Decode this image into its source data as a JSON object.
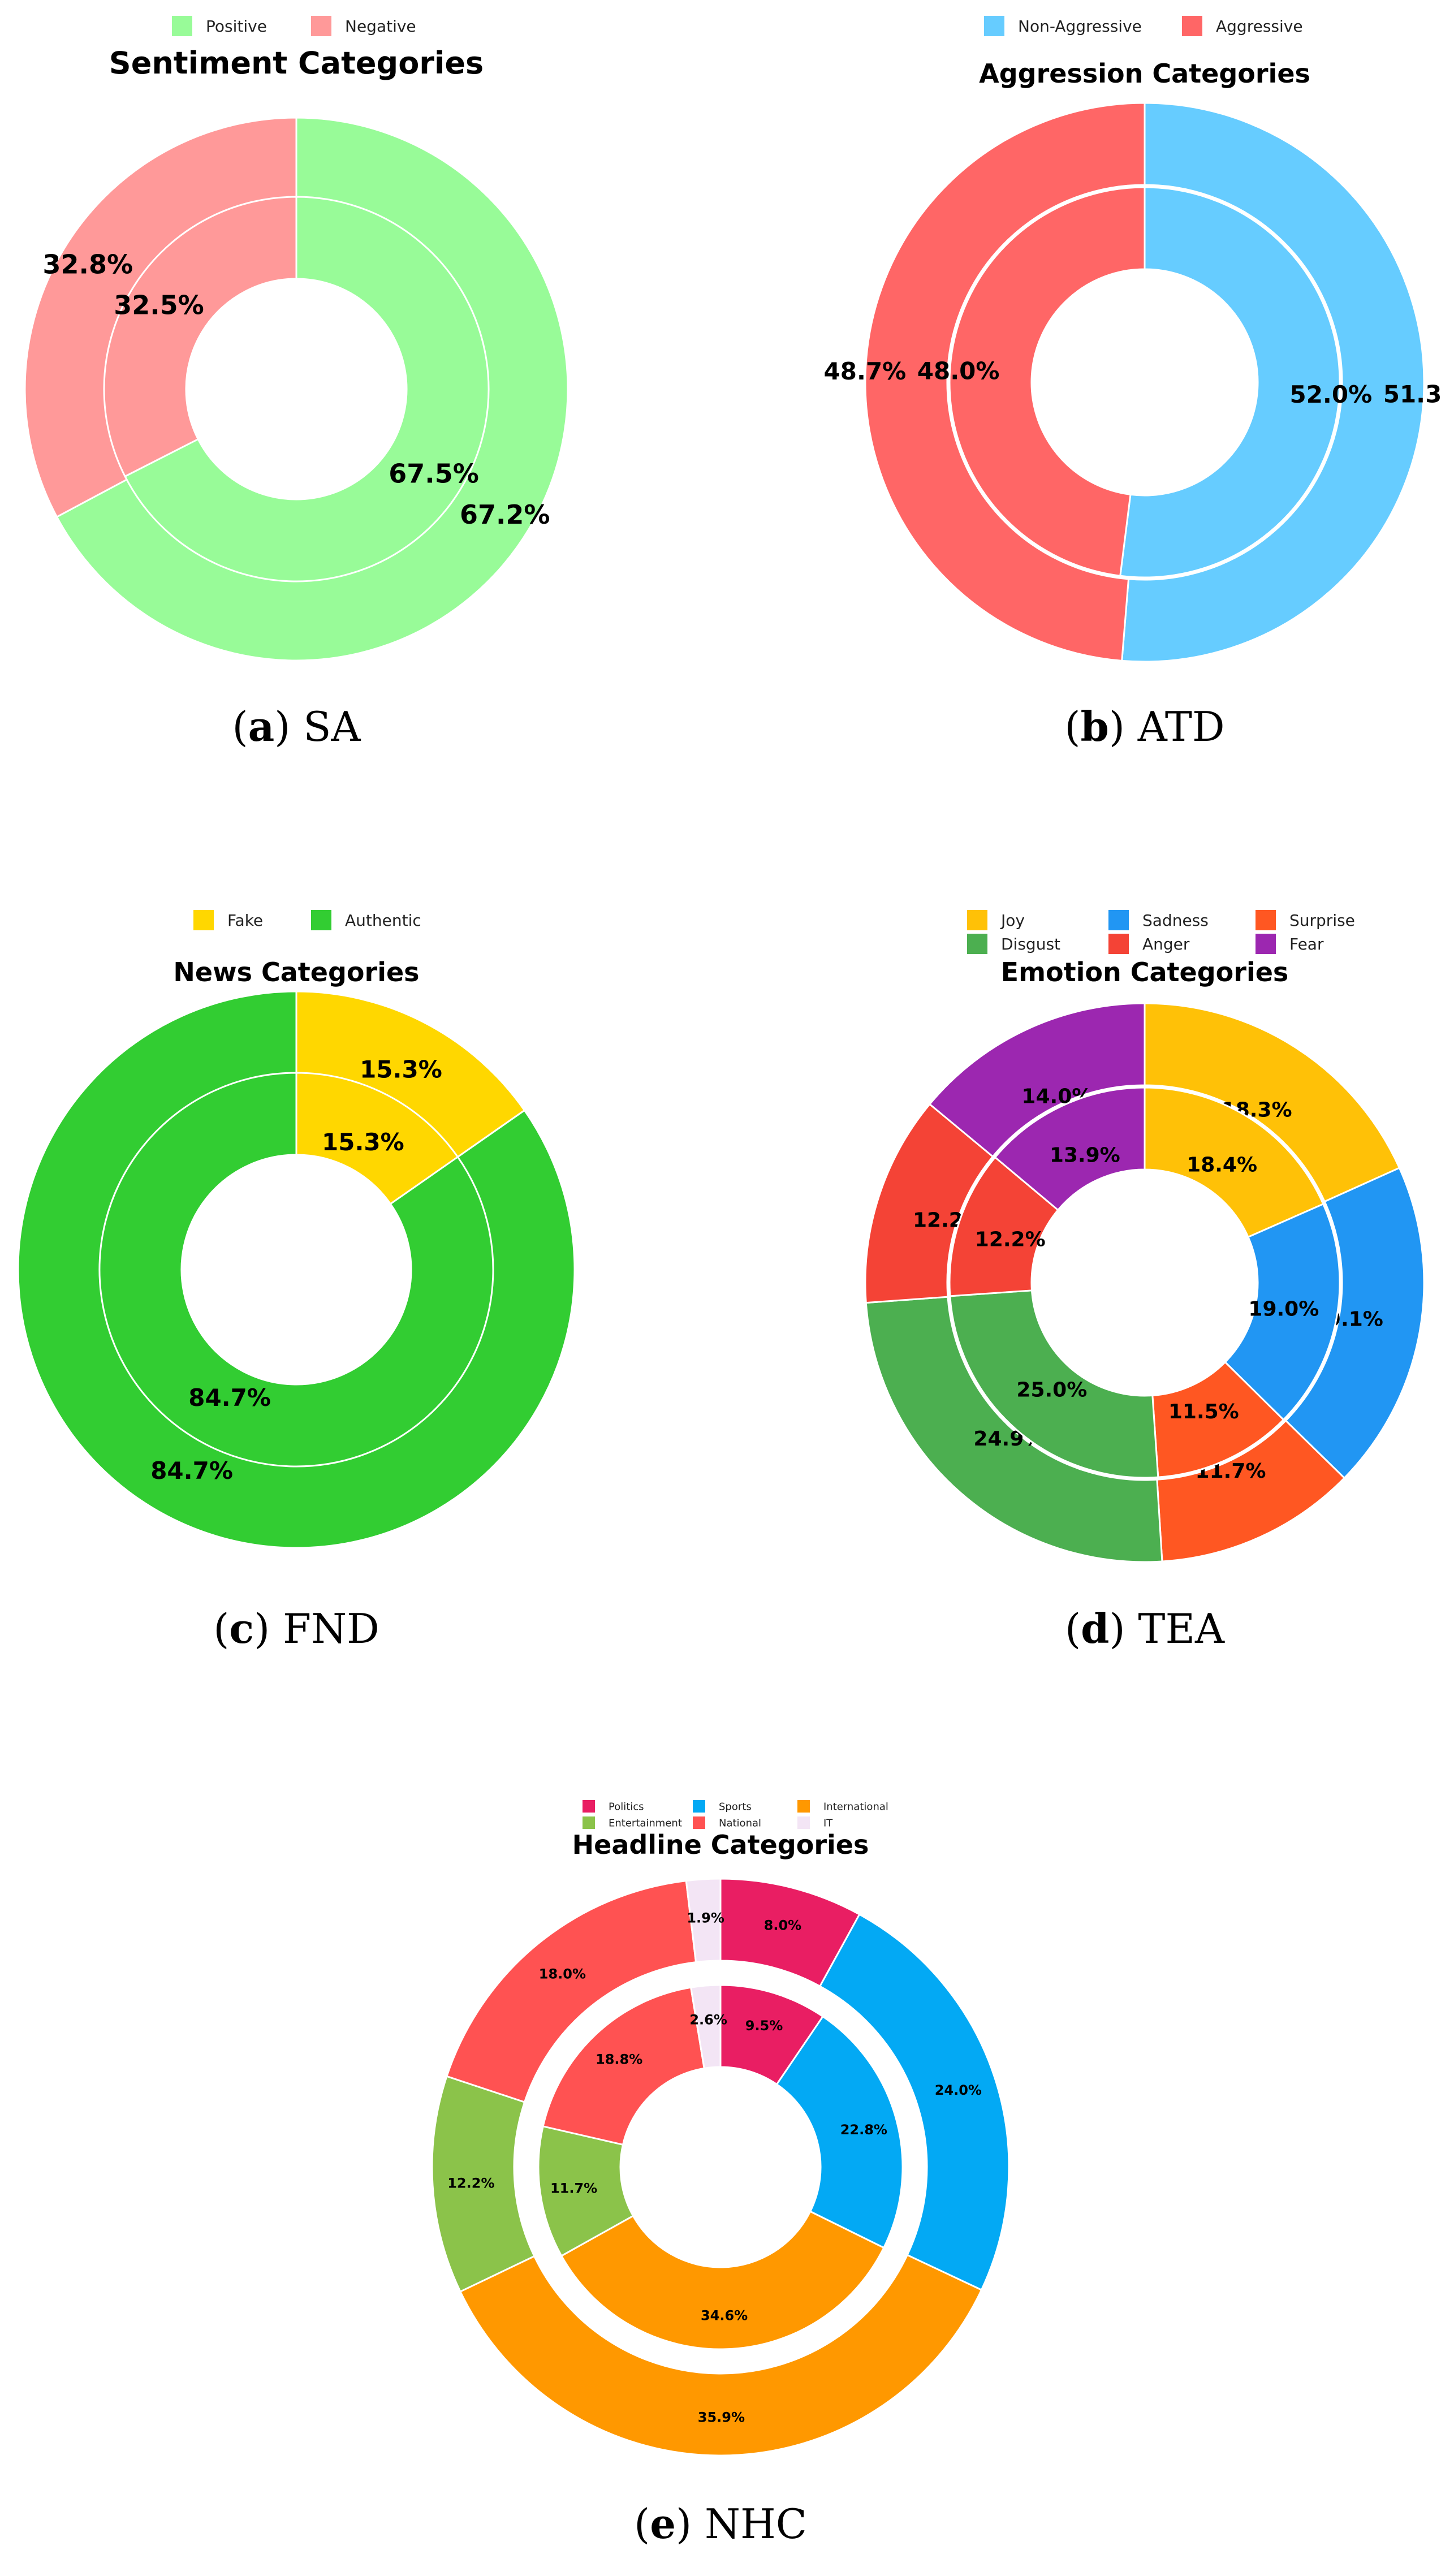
{
  "chart_data": [
    {
      "type": "pie",
      "title": "Sentiment Categories",
      "caption_letter": "a",
      "caption_name": "SA",
      "categories": [
        "Positive",
        "Negative"
      ],
      "colors": [
        "#98fb98",
        "#ff9999"
      ],
      "series": [
        {
          "ring": "outer",
          "values": [
            67.2,
            32.8
          ]
        },
        {
          "ring": "inner",
          "values": [
            67.5,
            32.5
          ]
        }
      ],
      "legend_position": "top"
    },
    {
      "type": "pie",
      "title": "Aggression Categories",
      "caption_letter": "b",
      "caption_name": "ATD",
      "categories": [
        "Non-Aggressive",
        "Aggressive"
      ],
      "colors": [
        "#66ccff",
        "#ff6666"
      ],
      "series": [
        {
          "ring": "outer",
          "values": [
            51.3,
            48.7
          ]
        },
        {
          "ring": "inner",
          "values": [
            52.0,
            48.0
          ]
        }
      ],
      "legend_position": "top"
    },
    {
      "type": "pie",
      "title": "News Categories",
      "caption_letter": "c",
      "caption_name": "FND",
      "categories": [
        "Fake",
        "Authentic"
      ],
      "colors": [
        "#ffd700",
        "#32cd32"
      ],
      "series": [
        {
          "ring": "outer",
          "values": [
            15.3,
            84.7
          ]
        },
        {
          "ring": "inner",
          "values": [
            15.3,
            84.7
          ]
        }
      ],
      "legend_position": "top"
    },
    {
      "type": "pie",
      "title": "Emotion Categories",
      "caption_letter": "d",
      "caption_name": "TEA",
      "categories": [
        "Joy",
        "Sadness",
        "Surprise",
        "Disgust",
        "Anger",
        "Fear"
      ],
      "colors": [
        "#ffc107",
        "#2196f3",
        "#ff5722",
        "#4caf50",
        "#f44336",
        "#9c27b0"
      ],
      "series": [
        {
          "ring": "outer",
          "values": [
            18.3,
            19.1,
            11.7,
            24.9,
            12.2,
            14.0
          ]
        },
        {
          "ring": "inner",
          "values": [
            18.4,
            19.0,
            11.5,
            25.0,
            12.2,
            13.9
          ]
        }
      ],
      "legend_position": "top"
    },
    {
      "type": "pie",
      "title": "Headline Categories",
      "caption_letter": "e",
      "caption_name": "NHC",
      "categories": [
        "Politics",
        "Sports",
        "International",
        "Entertainment",
        "National",
        "IT"
      ],
      "colors": [
        "#e91e63",
        "#03a9f4",
        "#ff9800",
        "#8bc34a",
        "#ff5252",
        "#f3e5f5"
      ],
      "series": [
        {
          "ring": "outer",
          "values": [
            8.0,
            24.0,
            35.9,
            12.2,
            18.0,
            1.9
          ]
        },
        {
          "ring": "inner",
          "values": [
            9.5,
            22.8,
            34.6,
            11.7,
            18.8,
            2.6
          ]
        }
      ],
      "legend_position": "top"
    }
  ]
}
